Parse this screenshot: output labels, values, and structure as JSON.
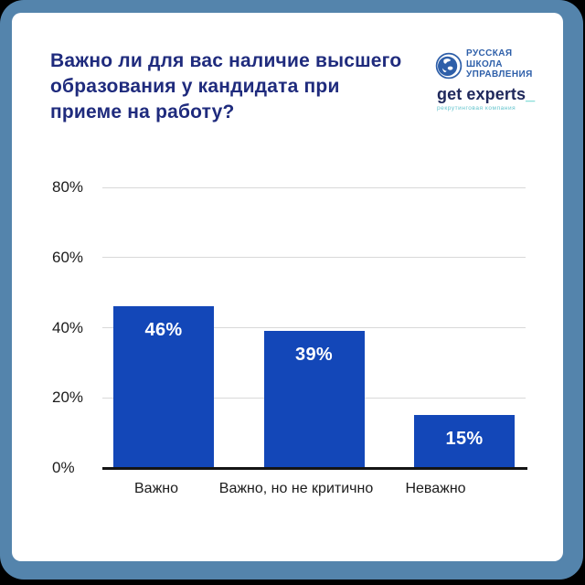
{
  "frame": {
    "background": "#000000",
    "border_color": "#5484ac",
    "card_color": "#ffffff"
  },
  "title": {
    "lines": [
      "Важно ли для вас наличие высшего",
      "образования у кандидата при",
      "приеме на работу?"
    ],
    "color": "#1f2b7d"
  },
  "logos": {
    "rshu": {
      "icon": "globe-icon",
      "lines": [
        "РУССКАЯ",
        "ШКОЛА",
        "УПРАВЛЕНИЯ"
      ],
      "color": "#2e5fa9"
    },
    "get_experts": {
      "brand": "get experts",
      "underscore": "_",
      "tagline": "рекрутинговая компания",
      "brand_color": "#20295c",
      "accent_color": "#2fc4bb"
    }
  },
  "chart_data": {
    "type": "bar",
    "title": "Важно ли для вас наличие высшего образования у кандидата при приеме на работу?",
    "categories": [
      "Важно",
      "Важно, но не критично",
      "Неважно"
    ],
    "values": [
      46,
      39,
      15
    ],
    "value_labels": [
      "46%",
      "39%",
      "15%"
    ],
    "yticks": [
      {
        "value": 0,
        "label": "0%"
      },
      {
        "value": 20,
        "label": "20%"
      },
      {
        "value": 40,
        "label": "40%"
      },
      {
        "value": 60,
        "label": "60%"
      },
      {
        "value": 80,
        "label": "80%"
      }
    ],
    "ylim": [
      0,
      80
    ],
    "grid": "on",
    "legend": "none",
    "xlabel": "",
    "ylabel": "",
    "bar_color": "#1347b8",
    "grid_color": "#d9d9d9",
    "axis_color": "#141414",
    "tick_label_color": "#1c1c1c",
    "value_label_color": "#ffffff"
  }
}
